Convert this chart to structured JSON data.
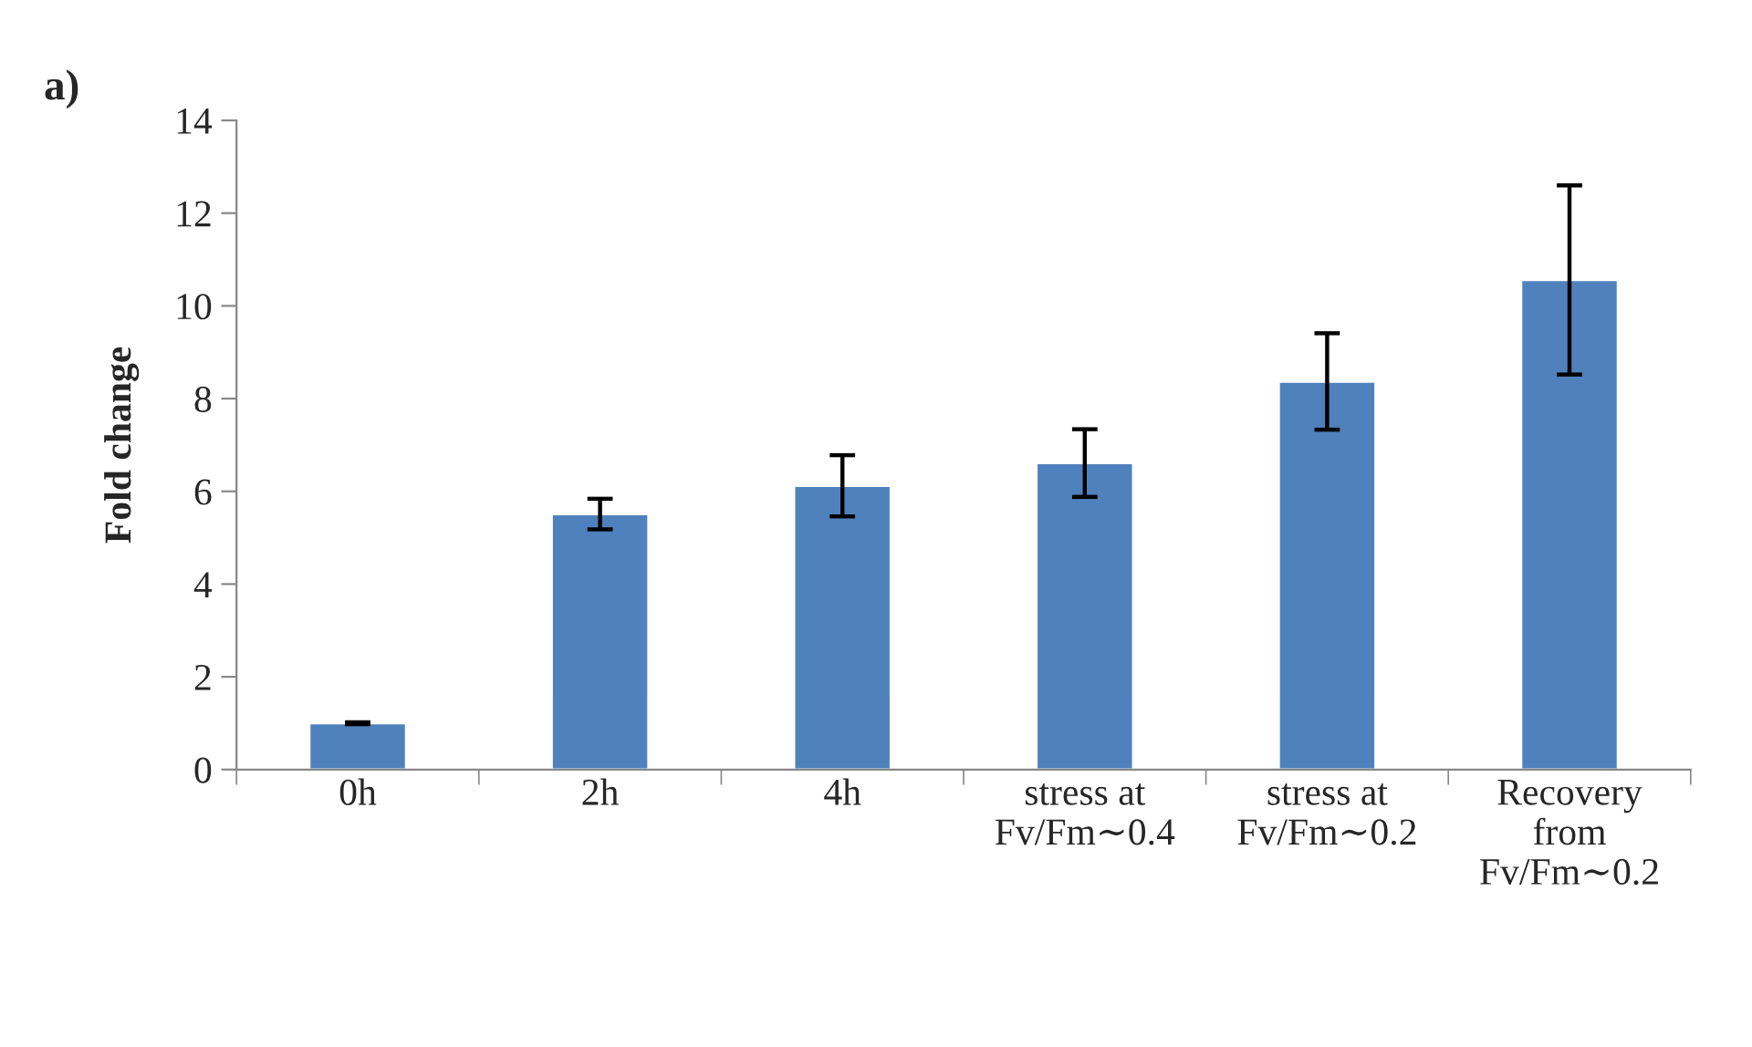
{
  "chart_data": {
    "type": "bar",
    "ylabel": "Fold change",
    "annotations": [
      "a)"
    ],
    "categories": [
      "0h",
      "2h",
      "4h",
      "stress at\nFv/Fm∼0.4",
      "stress at\nFv/Fm∼0.2",
      "Recovery\nfrom\nFv/Fm∼0.2"
    ],
    "values": [
      1.0,
      5.51,
      6.12,
      6.61,
      8.37,
      10.56
    ],
    "errors": [
      0.02,
      0.33,
      0.66,
      0.73,
      1.04,
      2.04
    ],
    "color": "#4f81bd",
    "ylim": [
      0,
      14
    ],
    "yticks": [
      0,
      2,
      4,
      6,
      8,
      10,
      12,
      14
    ],
    "grid": false,
    "legend": false
  }
}
